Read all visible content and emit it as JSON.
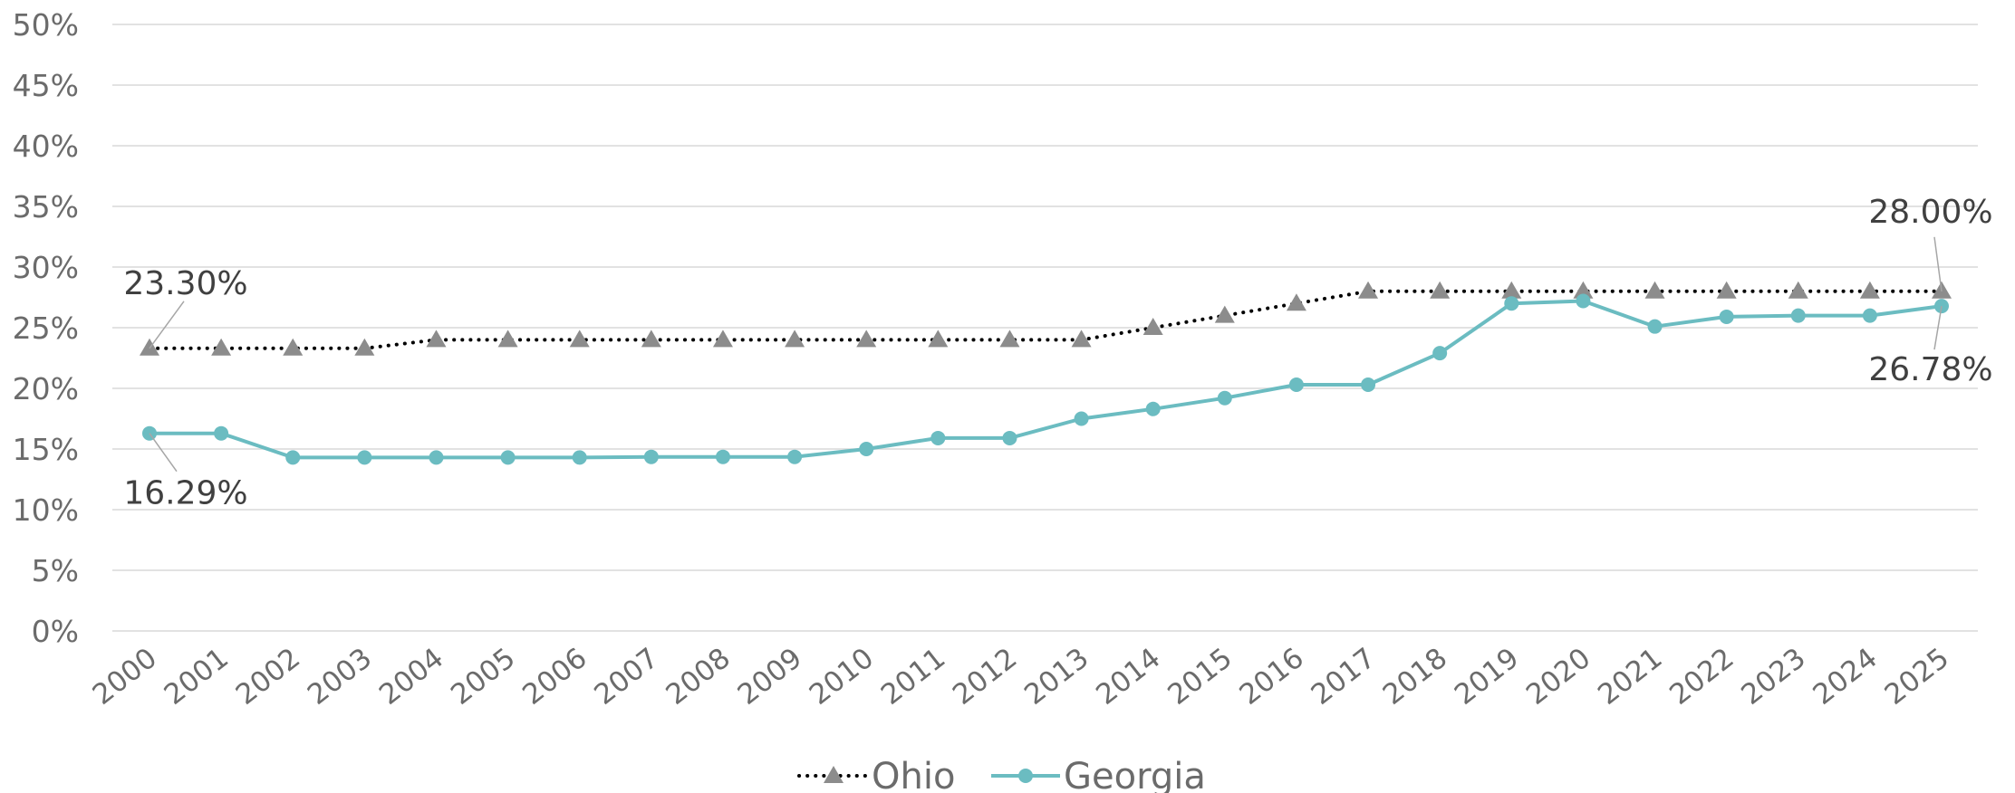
{
  "chart_data": {
    "type": "line",
    "x": [
      "2000",
      "2001",
      "2002",
      "2003",
      "2004",
      "2005",
      "2006",
      "2007",
      "2008",
      "2009",
      "2010",
      "2011",
      "2012",
      "2013",
      "2014",
      "2015",
      "2016",
      "2017",
      "2018",
      "2019",
      "2020",
      "2021",
      "2022",
      "2023",
      "2024",
      "2025"
    ],
    "ylim": [
      0,
      50
    ],
    "yticks": [
      0,
      5,
      10,
      15,
      20,
      25,
      30,
      35,
      40,
      45,
      50
    ],
    "ytick_labels": [
      "0%",
      "5%",
      "10%",
      "15%",
      "20%",
      "25%",
      "30%",
      "35%",
      "40%",
      "45%",
      "50%"
    ],
    "grid": "horizontal",
    "legend_position": "bottom",
    "series": [
      {
        "name": "Ohio",
        "color": "#000000",
        "marker_color": "#8c8c8c",
        "line_style": "dotted",
        "marker": "triangle",
        "values": [
          23.3,
          23.3,
          23.3,
          23.3,
          24,
          24,
          24,
          24,
          24,
          24,
          24,
          24,
          24,
          24,
          25,
          26,
          27,
          28,
          28,
          28,
          28,
          28,
          28,
          28,
          28,
          28
        ]
      },
      {
        "name": "Georgia",
        "color": "#6bbcc1",
        "marker_color": "#6bbcc1",
        "line_style": "solid",
        "marker": "circle",
        "values": [
          16.29,
          16.29,
          14.3,
          14.3,
          14.3,
          14.3,
          14.3,
          14.35,
          14.35,
          14.35,
          15,
          15.9,
          15.9,
          17.5,
          18.3,
          19.2,
          20.3,
          20.3,
          22.9,
          27.0,
          27.2,
          25.1,
          25.9,
          26.0,
          26.0,
          26.78
        ]
      }
    ],
    "annotations": [
      {
        "series": "Ohio",
        "x": "2000",
        "text": "23.30%"
      },
      {
        "series": "Georgia",
        "x": "2000",
        "text": "16.29%"
      },
      {
        "series": "Ohio",
        "x": "2025",
        "text": "28.00%"
      },
      {
        "series": "Georgia",
        "x": "2025",
        "text": "26.78%"
      }
    ]
  }
}
